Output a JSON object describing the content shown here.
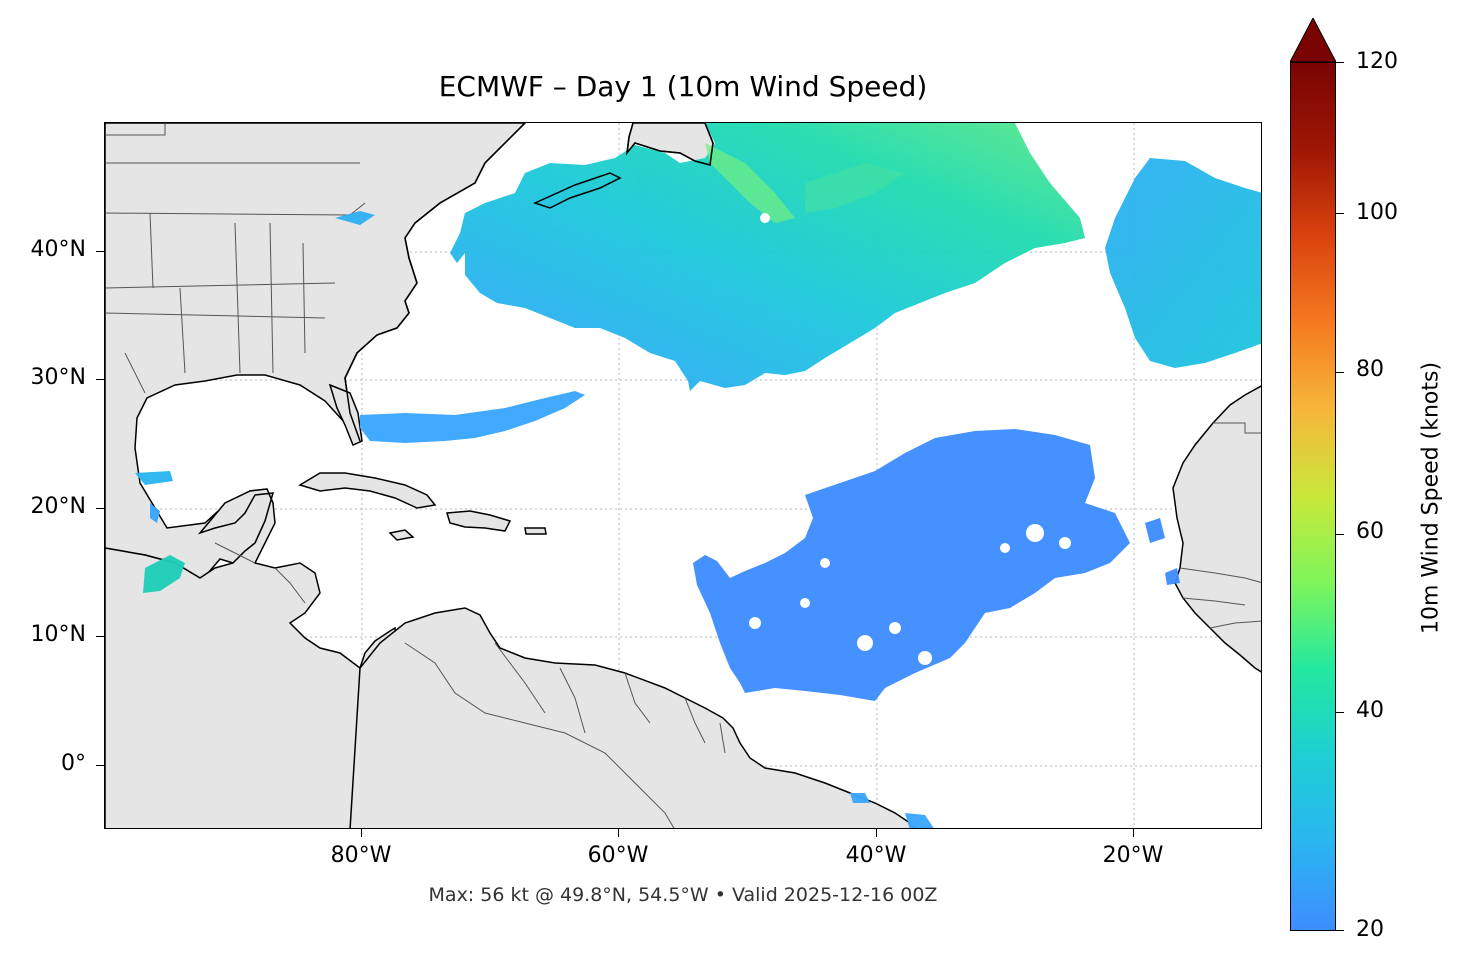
{
  "title": "ECMWF – Day 1 (10m Wind Speed)",
  "caption": "Max: 56 kt @ 49.8°N, 54.5°W • Valid 2025-12-16 00Z",
  "map": {
    "projection": "PlateCarree",
    "lon_range": [
      -100,
      -10
    ],
    "lat_range": [
      -5,
      50
    ],
    "gridlines": "dotted gray",
    "land_color": "#e5e5e5",
    "coastline_color": "#000000",
    "border_color": "#555555",
    "lat_ticks": [
      {
        "value": 40,
        "label": "40°N"
      },
      {
        "value": 30,
        "label": "30°N"
      },
      {
        "value": 20,
        "label": "20°N"
      },
      {
        "value": 10,
        "label": "10°N"
      },
      {
        "value": 0,
        "label": "0°"
      }
    ],
    "lon_ticks": [
      {
        "value": -80,
        "label": "80°W"
      },
      {
        "value": -60,
        "label": "60°W"
      },
      {
        "value": -40,
        "label": "40°W"
      },
      {
        "value": -20,
        "label": "20°W"
      }
    ],
    "max_wind": {
      "value_kt": 56,
      "lat": 49.8,
      "lon": -54.5
    }
  },
  "colorbar": {
    "label": "10m Wind Speed (knots)",
    "min": 20,
    "max": 120,
    "extend": "max",
    "colormap": "turbo",
    "ticks": [
      {
        "value": 120,
        "label": "120"
      },
      {
        "value": 100,
        "label": "100"
      },
      {
        "value": 80,
        "label": "80"
      },
      {
        "value": 60,
        "label": "60"
      },
      {
        "value": 40,
        "label": "40"
      },
      {
        "value": 20,
        "label": "20"
      }
    ],
    "colors": {
      "low": "#3d8dff",
      "c25": "#2ab5f0",
      "c33": "#1ecfd4",
      "c40": "#22e8a0",
      "c50": "#7ef55a",
      "c60": "#c9e83a",
      "c72": "#f7b63a",
      "c85": "#f57a1f",
      "c100": "#d9430e",
      "c115": "#9e1704",
      "high": "#7a0403"
    }
  }
}
